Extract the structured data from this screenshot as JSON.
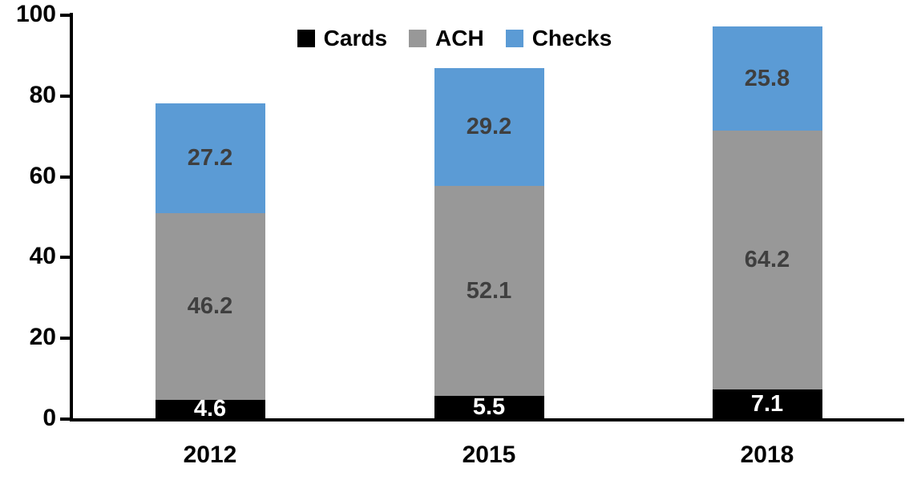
{
  "chart_data": {
    "type": "bar",
    "stacked": true,
    "title": "",
    "xlabel": "",
    "ylabel": "",
    "categories": [
      "2012",
      "2015",
      "2018"
    ],
    "series": [
      {
        "name": "Cards",
        "color": "#000000",
        "label_color": "#ffffff",
        "values": [
          4.6,
          5.5,
          7.1
        ]
      },
      {
        "name": "ACH",
        "color": "#989898",
        "label_color": "#3f3f3f",
        "values": [
          46.2,
          52.1,
          64.2
        ]
      },
      {
        "name": "Checks",
        "color": "#5b9bd5",
        "label_color": "#3f3f3f",
        "values": [
          27.2,
          29.2,
          25.8
        ]
      }
    ],
    "ylim": [
      0,
      100
    ],
    "yticks": [
      0,
      20,
      40,
      60,
      80,
      100
    ],
    "grid": false,
    "legend_position": "top",
    "background_color": "#ffffff",
    "axis_color": "#000000"
  }
}
